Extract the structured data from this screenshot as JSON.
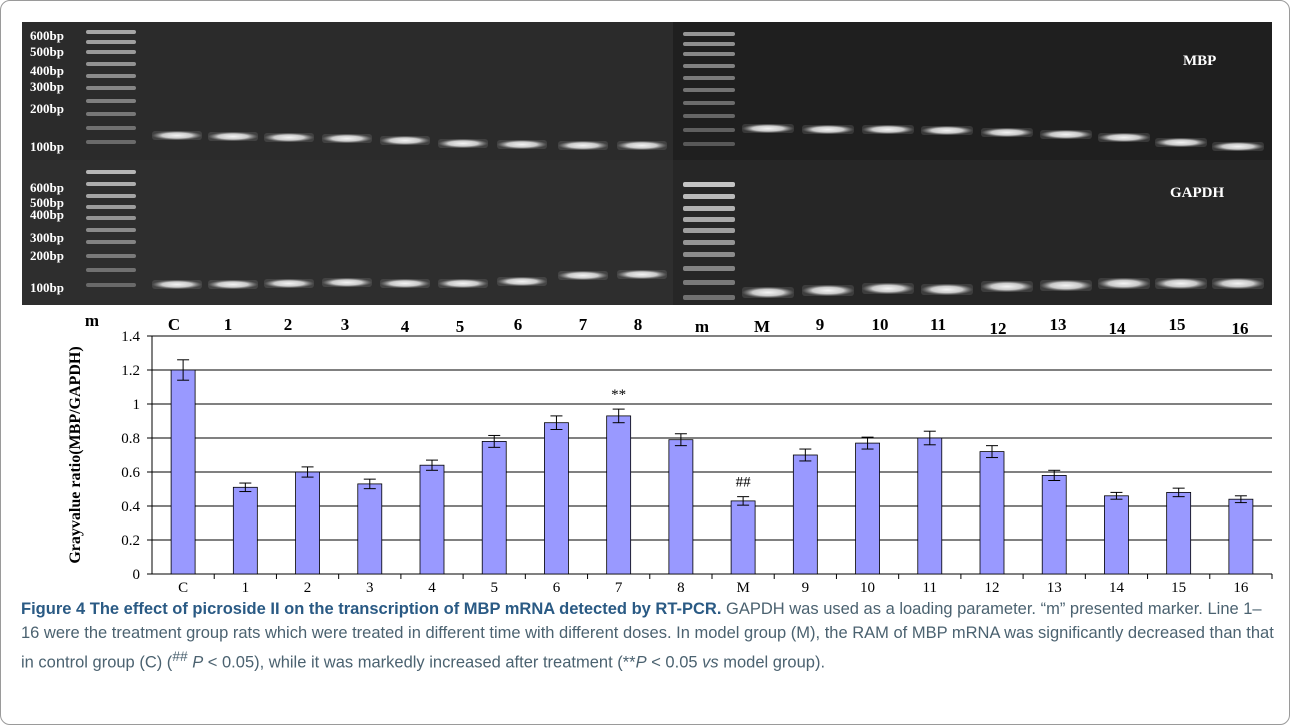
{
  "gel": {
    "top_panel_title": "MBP",
    "bottom_panel_title": "GAPDH",
    "top_marker_labels": [
      "600bp",
      "500bp",
      "400bp",
      "300bp",
      "200bp",
      "100bp"
    ],
    "bottom_marker_labels": [
      "600bp",
      "500bp",
      "400bp",
      "300bp",
      "200bp",
      "100bp"
    ],
    "lane_labels": [
      "m",
      "C",
      "1",
      "2",
      "3",
      "4",
      "5",
      "6",
      "7",
      "8",
      "m",
      "M",
      "9",
      "10",
      "11",
      "12",
      "13",
      "14",
      "15",
      "16"
    ]
  },
  "chart_data": {
    "type": "bar",
    "categories": [
      "C",
      "1",
      "2",
      "3",
      "4",
      "5",
      "6",
      "7",
      "8",
      "M",
      "9",
      "10",
      "11",
      "12",
      "13",
      "14",
      "15",
      "16"
    ],
    "values": [
      1.2,
      0.51,
      0.6,
      0.53,
      0.64,
      0.78,
      0.89,
      0.93,
      0.79,
      0.43,
      0.7,
      0.77,
      0.8,
      0.72,
      0.58,
      0.46,
      0.48,
      0.44
    ],
    "errors": [
      0.06,
      0.025,
      0.03,
      0.028,
      0.03,
      0.035,
      0.04,
      0.04,
      0.035,
      0.025,
      0.035,
      0.035,
      0.04,
      0.035,
      0.03,
      0.02,
      0.025,
      0.02
    ],
    "ylabel": "Grayvalue ratio(MBP/GAPDH)",
    "ylim": [
      0,
      1.4
    ],
    "yticks": [
      "0",
      "0.2",
      "0.4",
      "0.6",
      "0.8",
      "1",
      "1.2",
      "1.4"
    ],
    "annotations": [
      {
        "category": "7",
        "text": "**"
      },
      {
        "category": "M",
        "text": "##"
      }
    ],
    "bar_color": "#9999ff",
    "grid": "horizontal"
  },
  "caption": {
    "title": "Figure 4 The effect of picroside II on the transcription of MBP mRNA detected by RT-PCR.",
    "body_1": " GAPDH was used as a loading parameter. “m” presented marker. Line 1–16 were the treatment group rats which were treated in different time with different doses. In model group (M), the RAM of MBP mRNA was significantly decreased than that in control group (C) (",
    "sup_1": "##",
    "italic_p1": " P",
    "body_2": " < 0.05), while it was markedly increased after treatment (**",
    "italic_p2": "P",
    "body_3": " < 0.05 ",
    "italic_vs": "vs",
    "body_4": " model group)."
  }
}
